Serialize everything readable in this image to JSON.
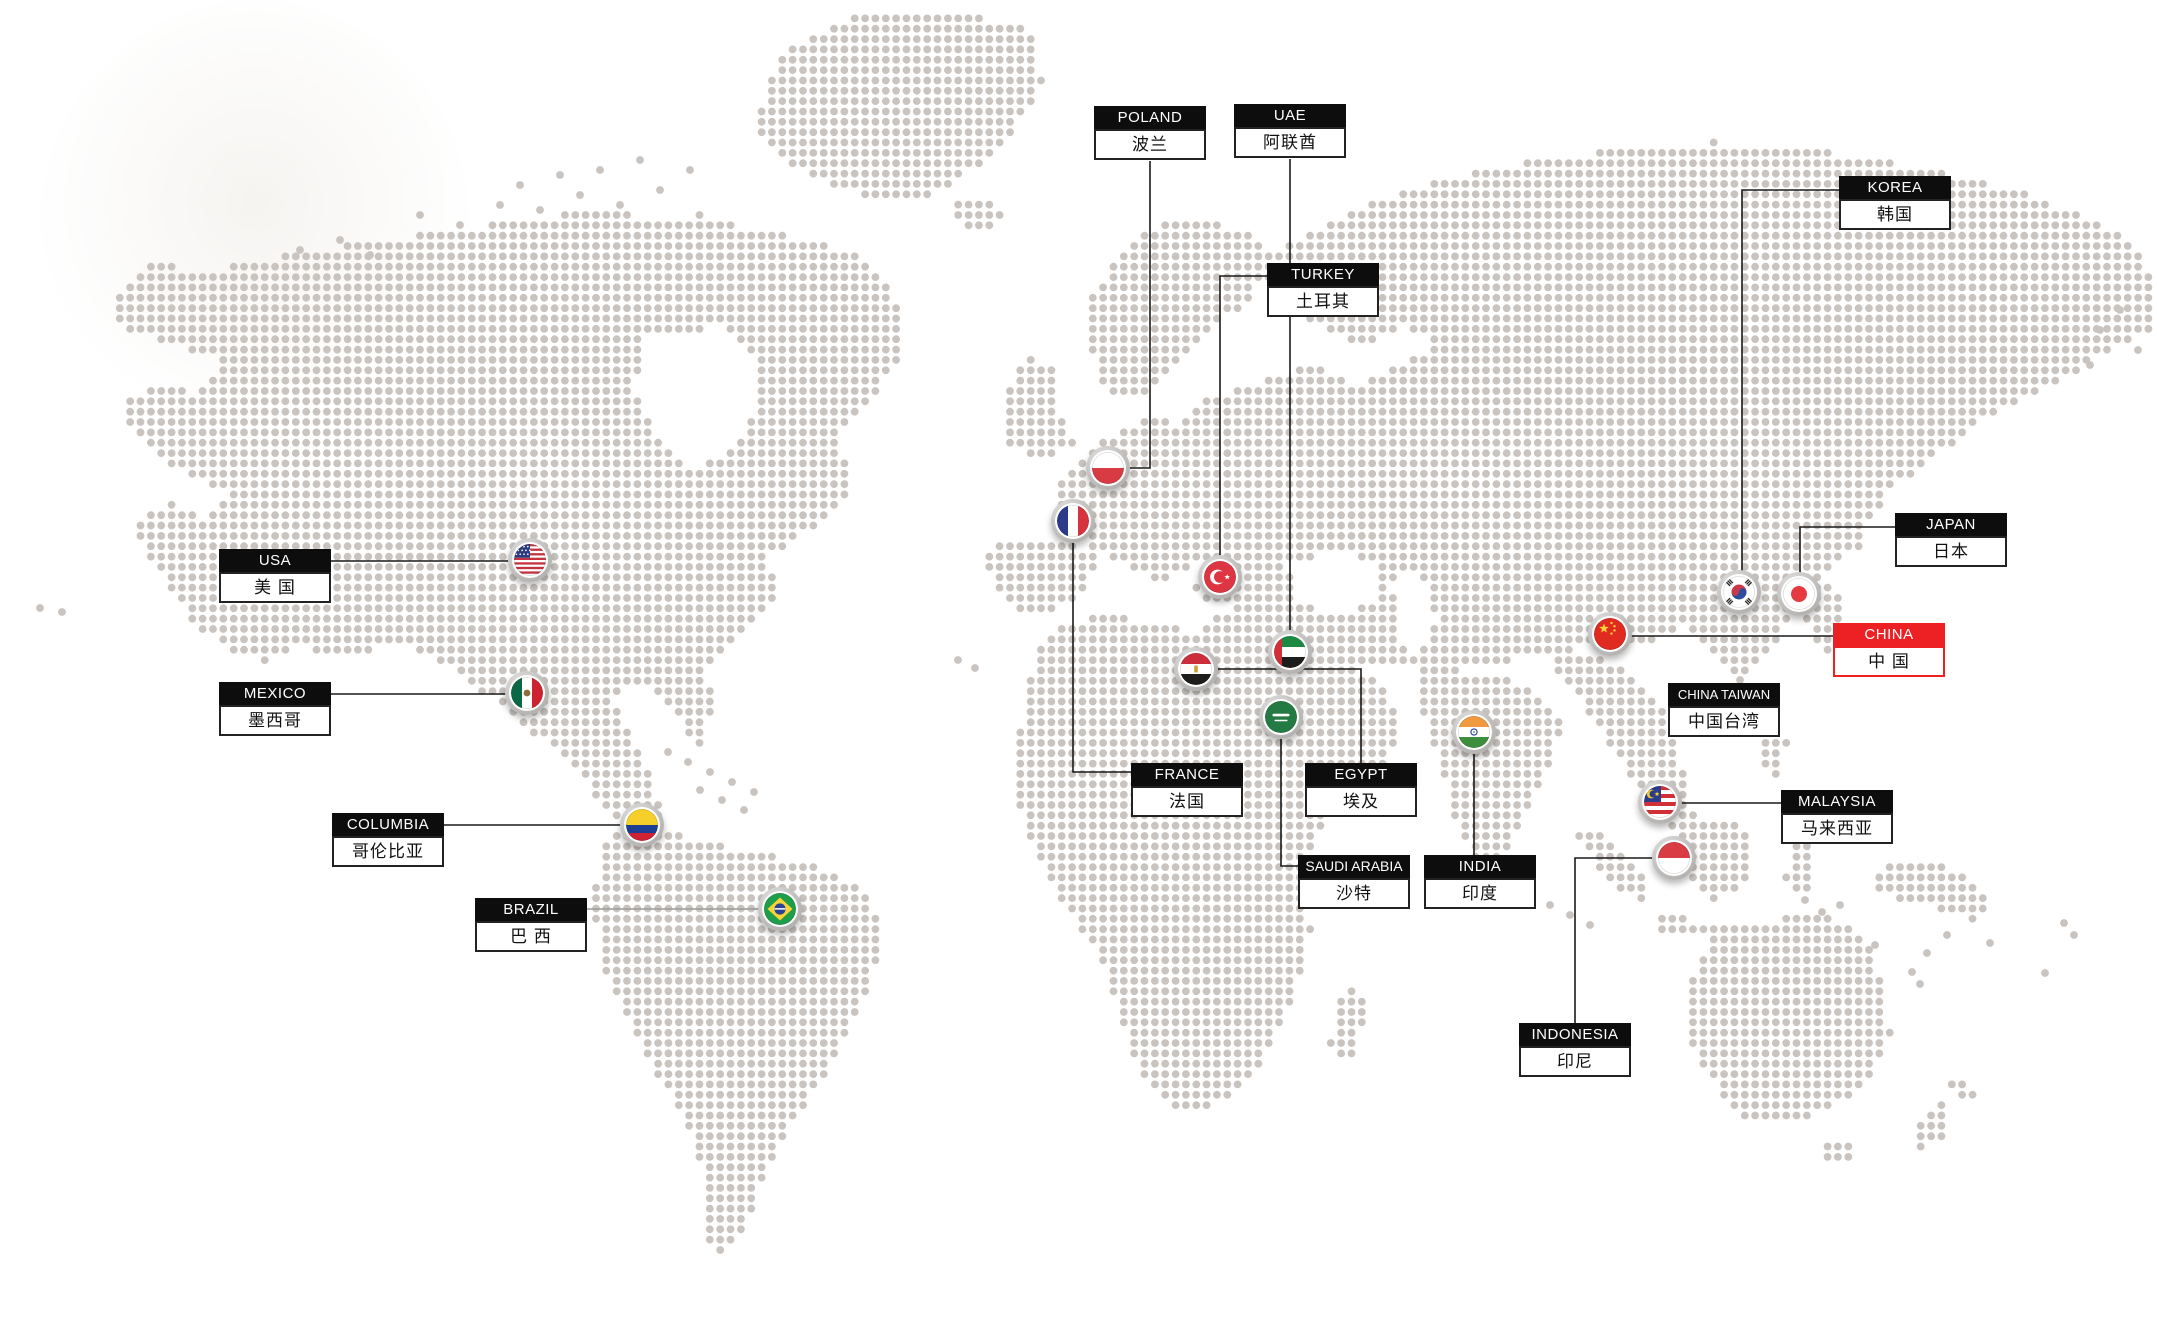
{
  "map": {
    "dot_color": "#c9c4bf",
    "line_color": "#1a1a1a",
    "line_color_alt": "#9b9b9b",
    "label_header_bg": "#0d0d0d",
    "label_body_bg": "#ffffff",
    "highlight_color": "#ed2024"
  },
  "countries": [
    {
      "id": "usa",
      "name_en": "USA",
      "name_zh": "美 国",
      "highlight": false
    },
    {
      "id": "mexico",
      "name_en": "MEXICO",
      "name_zh": "墨西哥",
      "highlight": false
    },
    {
      "id": "columbia",
      "name_en": "COLUMBIA",
      "name_zh": "哥伦比亚",
      "highlight": false
    },
    {
      "id": "brazil",
      "name_en": "BRAZIL",
      "name_zh": "巴 西",
      "highlight": false
    },
    {
      "id": "poland",
      "name_en": "POLAND",
      "name_zh": "波兰",
      "highlight": false
    },
    {
      "id": "france",
      "name_en": "FRANCE",
      "name_zh": "法国",
      "highlight": false
    },
    {
      "id": "turkey",
      "name_en": "TURKEY",
      "name_zh": "土耳其",
      "highlight": false
    },
    {
      "id": "uae",
      "name_en": "UAE",
      "name_zh": "阿联酋",
      "highlight": false
    },
    {
      "id": "egypt",
      "name_en": "EGYPT",
      "name_zh": "埃及",
      "highlight": false
    },
    {
      "id": "saudi",
      "name_en": "SAUDI ARABIA",
      "name_zh": "沙特",
      "highlight": false
    },
    {
      "id": "india",
      "name_en": "INDIA",
      "name_zh": "印度",
      "highlight": false
    },
    {
      "id": "china",
      "name_en": "CHINA",
      "name_zh": "中 国",
      "highlight": true
    },
    {
      "id": "taiwan",
      "name_en": "CHINA TAIWAN",
      "name_zh": "中国台湾",
      "highlight": false
    },
    {
      "id": "korea",
      "name_en": "KOREA",
      "name_zh": "韩国",
      "highlight": false
    },
    {
      "id": "japan",
      "name_en": "JAPAN",
      "name_zh": "日本",
      "highlight": false
    },
    {
      "id": "malaysia",
      "name_en": "MALAYSIA",
      "name_zh": "马来西亚",
      "highlight": false
    },
    {
      "id": "indonesia",
      "name_en": "INDONESIA",
      "name_zh": "印尼",
      "highlight": false
    }
  ]
}
